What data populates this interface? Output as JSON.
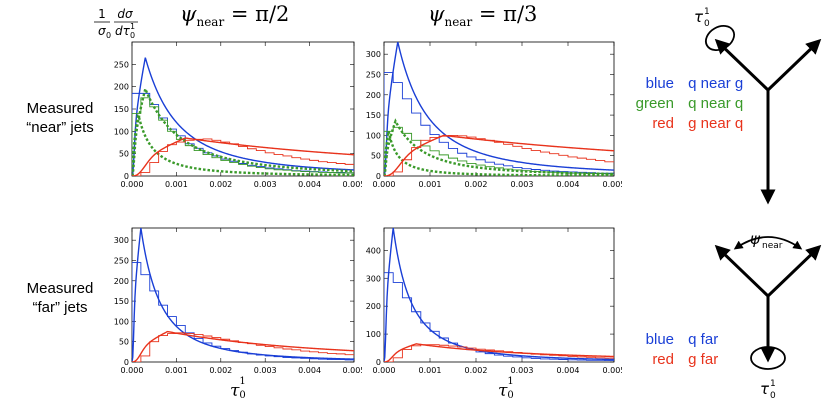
{
  "yaxis_label": {
    "prefix": "1",
    "sigma0": "σ",
    "sigma0_sub": "0",
    "dsigma": "dσ",
    "dtau": "dτ",
    "dtau_sub": "0",
    "dtau_sup": "1"
  },
  "column_titles": [
    {
      "psi": "ψ",
      "sub": "near",
      "rhs": "= π/2"
    },
    {
      "psi": "ψ",
      "sub": "near",
      "rhs": "= π/3"
    }
  ],
  "row_labels": [
    {
      "line1": "Measured",
      "line2": "“near” jets"
    },
    {
      "line1": "Measured",
      "line2": "“far” jets"
    }
  ],
  "xaxis_label": {
    "symbol": "τ",
    "sub": "0",
    "sup": "1"
  },
  "legend_top": [
    {
      "word": "blue",
      "desc": "q near g",
      "color": "#1a3fd6"
    },
    {
      "word": "green",
      "desc": "q near q",
      "color": "#3a9a2a"
    },
    {
      "word": "red",
      "desc": "g near q",
      "color": "#e8331c"
    }
  ],
  "legend_bottom": [
    {
      "word": "blue",
      "desc": "q far",
      "color": "#1a3fd6"
    },
    {
      "word": "red",
      "desc": "g far",
      "color": "#e8331c"
    }
  ],
  "diagram_labels": {
    "top_tau": {
      "symbol": "τ",
      "sub": "0",
      "sup": "1"
    },
    "bottom_tau": {
      "symbol": "τ",
      "sub": "0",
      "sup": "1"
    },
    "psi": {
      "symbol": "ψ",
      "sub": "near"
    }
  },
  "chart_data": [
    {
      "id": "near_pi2",
      "type": "line",
      "xlim": [
        0,
        0.005
      ],
      "ylim": [
        0,
        300
      ],
      "xticks": [
        "0.000",
        "0.001",
        "0.002",
        "0.003",
        "0.004",
        "0.005"
      ],
      "yticks": [
        "0",
        "50",
        "100",
        "150",
        "200",
        "250"
      ],
      "series": [
        {
          "name": "blue curve",
          "color": "#1a3fd6",
          "style": "solid",
          "peak": 265,
          "peak_x": 0.0003,
          "rise": 5e-05,
          "c1": 0.4,
          "c2": 0.05
        },
        {
          "name": "blue histogram",
          "color": "#1a3fd6",
          "style": "hist",
          "values": [
            185,
            185,
            160,
            130,
            105,
            90,
            72,
            62,
            52,
            45,
            38,
            33,
            28,
            24,
            21,
            18,
            16,
            14,
            12,
            11,
            10,
            9,
            8,
            8,
            7
          ]
        },
        {
          "name": "green curve 1",
          "color": "#3a9a2a",
          "style": "dotted",
          "peak": 195,
          "peak_x": 0.0003,
          "rise": 5e-05,
          "c1": 0.37,
          "c2": 0.045
        },
        {
          "name": "green curve 2",
          "color": "#3a9a2a",
          "style": "dotted",
          "peak": 135,
          "peak_x": 0.00014,
          "rise": 2e-05,
          "c1": 0.45,
          "c2": 0.035
        },
        {
          "name": "green histogram",
          "color": "#3a9a2a",
          "style": "hist",
          "values": [
            140,
            175,
            155,
            125,
            100,
            82,
            68,
            57,
            48,
            41,
            35,
            30,
            26,
            22,
            19,
            16,
            14,
            13,
            11,
            10,
            9,
            8,
            8,
            7,
            7
          ]
        },
        {
          "name": "red curve",
          "color": "#e8331c",
          "style": "solid",
          "peak": 85,
          "peak_x": 0.0012,
          "rise": 0.0003,
          "c1": 0.2,
          "c2": 0.015
        },
        {
          "name": "red histogram",
          "color": "#e8331c",
          "style": "hist",
          "values": [
            0,
            8,
            30,
            55,
            70,
            76,
            80,
            82,
            83,
            80,
            76,
            72,
            66,
            61,
            57,
            52,
            48,
            45,
            41,
            38,
            35,
            32,
            30,
            28,
            26
          ]
        }
      ]
    },
    {
      "id": "near_pi3",
      "type": "line",
      "xlim": [
        0,
        0.005
      ],
      "ylim": [
        0,
        330
      ],
      "xticks": [
        "0.000",
        "0.001",
        "0.002",
        "0.003",
        "0.004",
        "0.005"
      ],
      "yticks": [
        "0",
        "50",
        "100",
        "150",
        "200",
        "250",
        "300"
      ],
      "series": [
        {
          "name": "blue curve",
          "color": "#1a3fd6",
          "style": "solid",
          "peak": 330,
          "peak_x": 0.0003,
          "rise": 5e-05,
          "c1": 0.45,
          "c2": 0.06
        },
        {
          "name": "blue histogram",
          "color": "#1a3fd6",
          "style": "hist",
          "values": [
            255,
            230,
            190,
            155,
            125,
            102,
            83,
            68,
            56,
            47,
            40,
            34,
            29,
            25,
            21,
            18,
            16,
            14,
            12,
            11,
            10,
            9,
            8,
            7,
            7
          ]
        },
        {
          "name": "green curve 1",
          "color": "#3a9a2a",
          "style": "dotted",
          "peak": 135,
          "peak_x": 0.00025,
          "rise": 4e-05,
          "c1": 0.4,
          "c2": 0.05
        },
        {
          "name": "green curve 2",
          "color": "#3a9a2a",
          "style": "dotted",
          "peak": 110,
          "peak_x": 0.0001,
          "rise": 2e-05,
          "c1": 0.5,
          "c2": 0.04
        },
        {
          "name": "green histogram",
          "color": "#3a9a2a",
          "style": "hist",
          "values": [
            110,
            120,
            105,
            88,
            74,
            62,
            52,
            44,
            37,
            31,
            27,
            23,
            20,
            17,
            15,
            13,
            11,
            10,
            9,
            8,
            7,
            7,
            6,
            6,
            5
          ]
        },
        {
          "name": "red curve",
          "color": "#e8331c",
          "style": "solid",
          "peak": 100,
          "peak_x": 0.0013,
          "rise": 0.00035,
          "c1": 0.18,
          "c2": 0.012
        },
        {
          "name": "red histogram",
          "color": "#e8331c",
          "style": "hist",
          "values": [
            0,
            10,
            40,
            70,
            88,
            95,
            98,
            100,
            99,
            96,
            92,
            88,
            83,
            78,
            73,
            68,
            63,
            59,
            55,
            51,
            47,
            44,
            41,
            38,
            35
          ]
        }
      ]
    },
    {
      "id": "far_pi2",
      "type": "line",
      "xlim": [
        0,
        0.005
      ],
      "ylim": [
        0,
        330
      ],
      "xticks": [
        "0.000",
        "0.001",
        "0.002",
        "0.003",
        "0.004",
        "0.005"
      ],
      "yticks": [
        "0",
        "50",
        "100",
        "150",
        "200",
        "250",
        "300"
      ],
      "series": [
        {
          "name": "blue curve",
          "color": "#1a3fd6",
          "style": "solid",
          "peak": 330,
          "peak_x": 0.0002,
          "rise": 4e-05,
          "c1": 0.45,
          "c2": 0.06
        },
        {
          "name": "blue histogram",
          "color": "#1a3fd6",
          "style": "hist",
          "values": [
            245,
            215,
            175,
            140,
            112,
            90,
            72,
            58,
            47,
            39,
            33,
            28,
            24,
            20,
            17,
            15,
            13,
            11,
            10,
            9,
            8,
            7,
            6,
            6,
            5
          ]
        },
        {
          "name": "red curve",
          "color": "#e8331c",
          "style": "solid",
          "peak": 75,
          "peak_x": 0.0008,
          "rise": 0.0002,
          "c1": 0.22,
          "c2": 0.02
        },
        {
          "name": "red histogram",
          "color": "#e8331c",
          "style": "hist",
          "values": [
            0,
            15,
            50,
            65,
            70,
            72,
            70,
            68,
            64,
            60,
            56,
            52,
            48,
            45,
            41,
            38,
            35,
            32,
            30,
            27,
            25,
            23,
            21,
            20,
            18
          ]
        }
      ]
    },
    {
      "id": "far_pi3",
      "type": "line",
      "xlim": [
        0,
        0.005
      ],
      "ylim": [
        0,
        480
      ],
      "xticks": [
        "0.000",
        "0.001",
        "0.002",
        "0.003",
        "0.004",
        "0.005"
      ],
      "yticks": [
        "0",
        "100",
        "200",
        "300",
        "400"
      ],
      "series": [
        {
          "name": "blue curve",
          "color": "#1a3fd6",
          "style": "solid",
          "peak": 480,
          "peak_x": 0.0002,
          "rise": 4e-05,
          "c1": 0.5,
          "c2": 0.07
        },
        {
          "name": "blue histogram",
          "color": "#1a3fd6",
          "style": "hist",
          "values": [
            320,
            285,
            230,
            180,
            140,
            110,
            86,
            68,
            54,
            44,
            36,
            30,
            25,
            21,
            18,
            15,
            13,
            11,
            10,
            9,
            8,
            7,
            6,
            6,
            5
          ]
        },
        {
          "name": "red curve",
          "color": "#e8331c",
          "style": "solid",
          "peak": 65,
          "peak_x": 0.0007,
          "rise": 0.00018,
          "c1": 0.25,
          "c2": 0.02
        },
        {
          "name": "red histogram",
          "color": "#e8331c",
          "style": "hist",
          "values": [
            0,
            15,
            45,
            58,
            62,
            62,
            60,
            57,
            54,
            50,
            46,
            43,
            40,
            37,
            34,
            31,
            28,
            26,
            24,
            22,
            20,
            18,
            17,
            15,
            14
          ]
        }
      ]
    }
  ]
}
